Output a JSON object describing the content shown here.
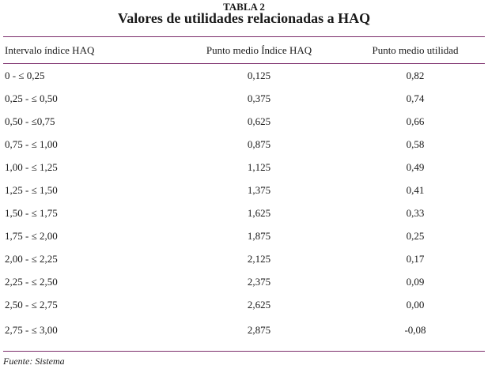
{
  "table": {
    "label": "TABLA 2",
    "title": "Valores de utilidades relacionadas a HAQ",
    "headers": [
      "Intervalo índice HAQ",
      "Punto medio Índice HAQ",
      "Punto medio utilidad"
    ],
    "rows": [
      [
        "0 - ≤ 0,25",
        "0,125",
        "0,82"
      ],
      [
        "0,25 - ≤ 0,50",
        "0,375",
        "0,74"
      ],
      [
        "0,50 - ≤0,75",
        "0,625",
        "0,66"
      ],
      [
        "0,75 - ≤ 1,00",
        "0,875",
        "0,58"
      ],
      [
        "1,00 - ≤ 1,25",
        "1,125",
        "0,49"
      ],
      [
        "1,25 - ≤ 1,50",
        "1,375",
        "0,41"
      ],
      [
        "1,50 - ≤ 1,75",
        "1,625",
        "0,33"
      ],
      [
        "1,75 - ≤ 2,00",
        "1,875",
        "0,25"
      ],
      [
        "2,00 - ≤ 2,25",
        "2,125",
        "0,17"
      ],
      [
        "2,25 - ≤ 2,50",
        "2,375",
        "0,09"
      ],
      [
        "2,50 - ≤ 2,75",
        "2,625",
        "0,00"
      ],
      [
        "2,75 - ≤ 3,00",
        "2,875",
        "-0,08"
      ]
    ],
    "source": "Fuente: Sistema",
    "rule_color": "#7b2d6b"
  }
}
